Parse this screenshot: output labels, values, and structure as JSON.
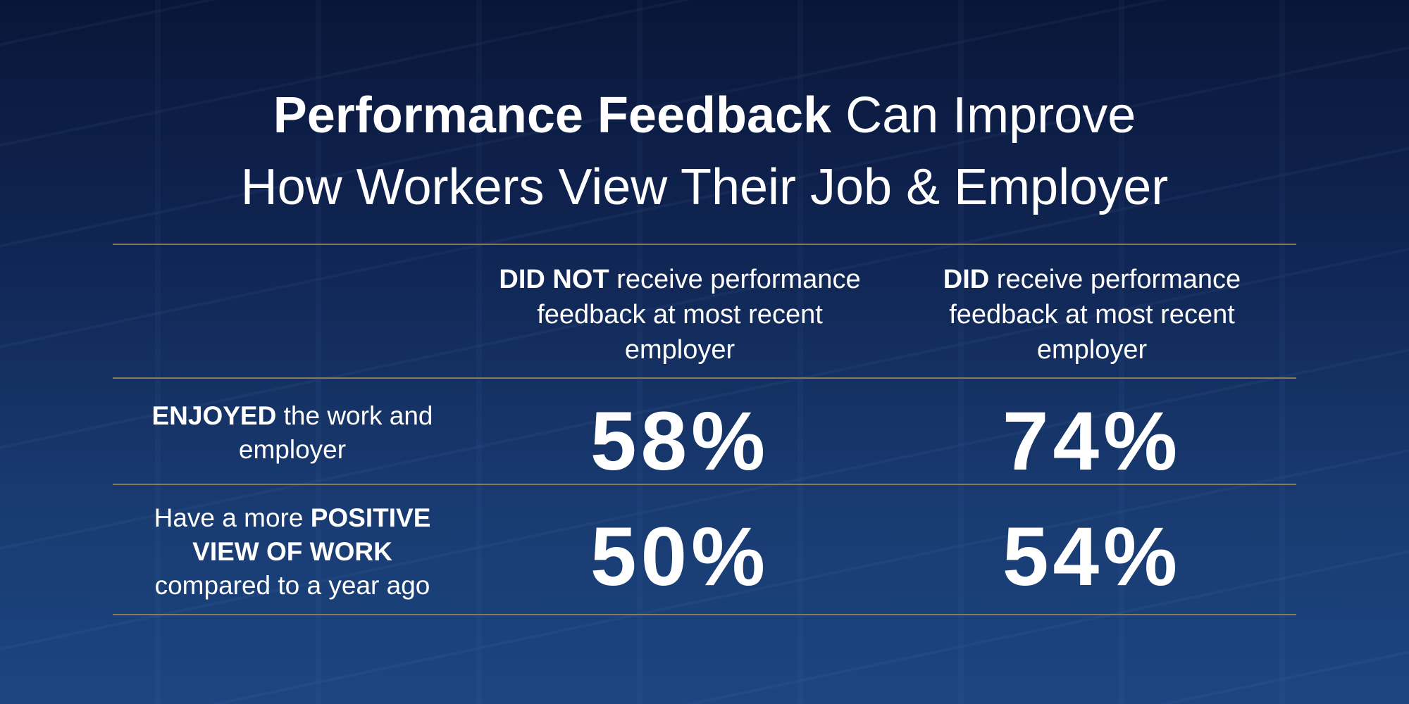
{
  "title": {
    "line1_bold": "Performance Feedback",
    "line1_rest": " Can Improve",
    "line2": "How Workers View Their Job & Employer"
  },
  "columns": [
    {
      "bold": "DID NOT",
      "rest": " receive performance feedback at most recent employer"
    },
    {
      "bold": "DID",
      "rest": " receive performance feedback at most recent employer"
    }
  ],
  "rows": [
    {
      "pre": "",
      "bold": "ENJOYED",
      "post": " the work and employer",
      "values": [
        "58%",
        "74%"
      ]
    },
    {
      "pre": "Have a more ",
      "bold": "POSITIVE VIEW OF WORK",
      "post": " compared to a year ago",
      "values": [
        "50%",
        "54%"
      ]
    }
  ]
}
